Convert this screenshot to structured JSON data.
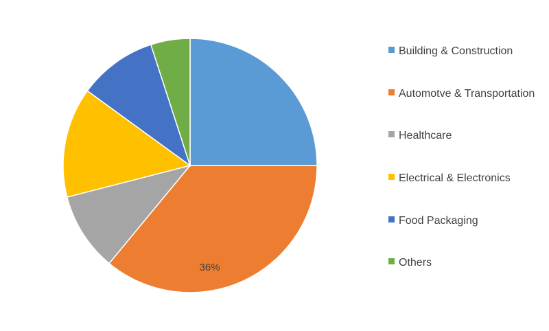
{
  "chart_data": {
    "type": "pie",
    "categories": [
      "Building & Construction",
      "Automotve & Transportation",
      "Healthcare",
      "Electrical & Electronics",
      "Food Packaging",
      "Others"
    ],
    "values": [
      25,
      36,
      10,
      14,
      10,
      5
    ],
    "value_labels": [
      null,
      "36%",
      null,
      null,
      null,
      null
    ],
    "colors": [
      "#5b9bd5",
      "#ed7d31",
      "#a5a5a5",
      "#ffc000",
      "#4472c4",
      "#70ad47"
    ],
    "legend": "right"
  }
}
